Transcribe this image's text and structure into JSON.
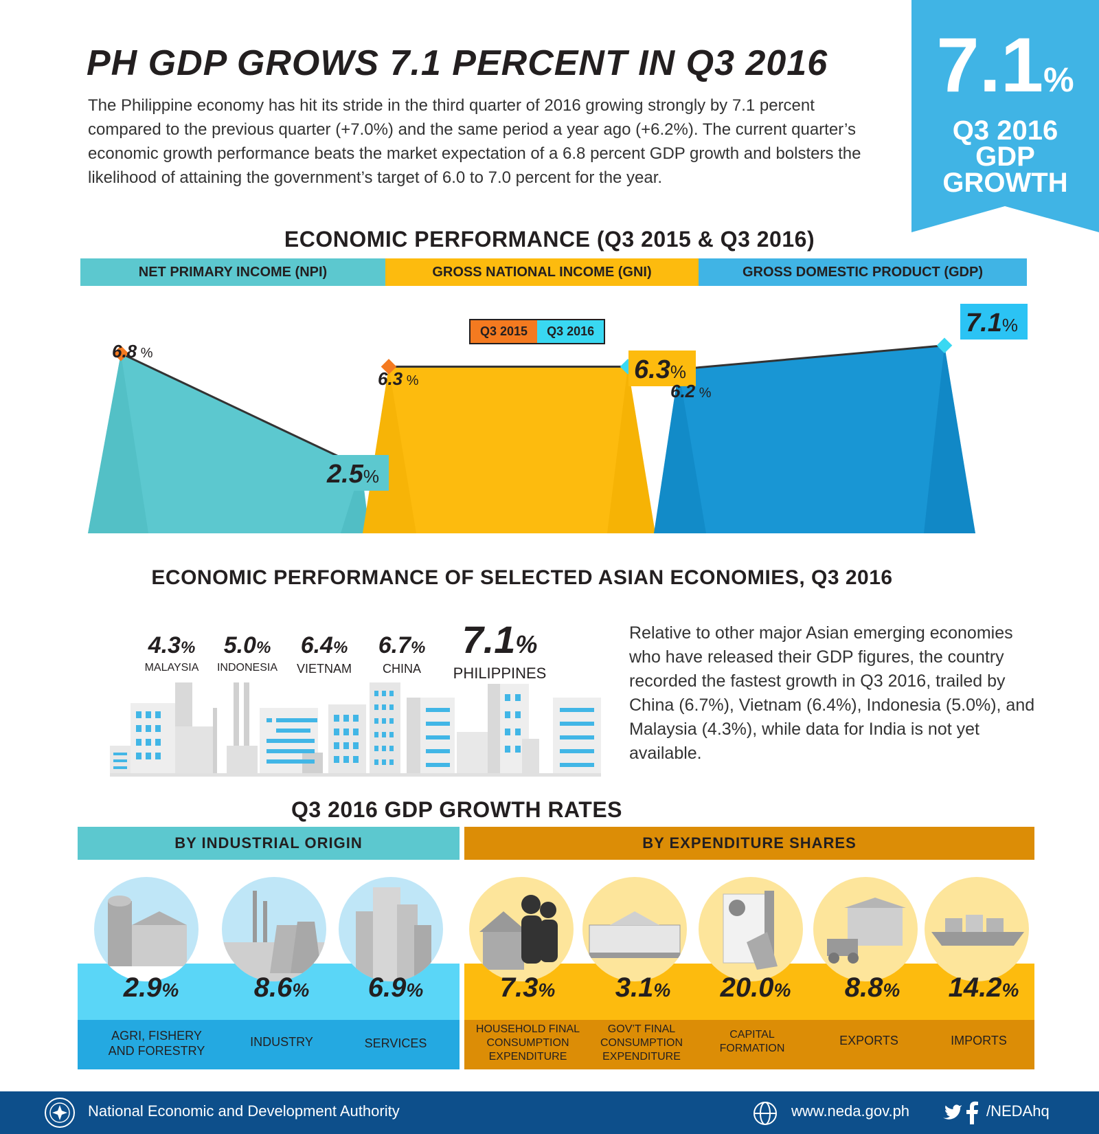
{
  "header": {
    "title": "PH GDP GROWS 7.1 PERCENT IN Q3 2016",
    "intro": "The Philippine economy has hit its stride in the third quarter of 2016 growing strongly by 7.1 percent compared to the previous quarter (+7.0%) and the same period a year ago (+6.2%). The current quarter’s economic growth performance beats the market expectation of a 6.8 percent GDP growth and bolsters the likelihood of attaining the government’s target of 6.0 to 7.0 percent for the year."
  },
  "ribbon": {
    "value": "7.1",
    "pct": "%",
    "line1": "Q3 2016",
    "line2": "GDP",
    "line3": "GROWTH"
  },
  "colors": {
    "teal": "#5cc8cf",
    "gold": "#fdbb0e",
    "blue": "#40b4e5",
    "orange": "#f47a20",
    "cyan": "#39d8f2",
    "darkblue": "#0f4e8c",
    "lightblue": "#5ad6f7",
    "amber": "#dc8d06"
  },
  "performance": {
    "title": "ECONOMIC PERFORMANCE (Q3 2015 & Q3 2016)",
    "bands": [
      "NET PRIMARY INCOME (NPI)",
      "GROSS NATIONAL INCOME (GNI)",
      "GROSS DOMESTIC PRODUCT (GDP)"
    ],
    "legend": [
      "Q3 2015",
      "Q3 2016"
    ]
  },
  "chart_data": [
    {
      "type": "line",
      "categories": [
        "NET PRIMARY INCOME (NPI)",
        "GROSS NATIONAL INCOME (GNI)",
        "GROSS DOMESTIC PRODUCT (GDP)"
      ],
      "series": [
        {
          "name": "Q3 2015",
          "values": [
            6.8,
            6.3,
            6.2
          ]
        },
        {
          "name": "Q3 2016",
          "values": [
            2.5,
            6.3,
            7.1
          ]
        }
      ],
      "labels_2015": [
        "6.8",
        "6.3",
        "6.2"
      ],
      "labels_2016": [
        "2.5",
        "6.3",
        "7.1"
      ],
      "ylim": [
        0,
        8
      ]
    }
  ],
  "asian": {
    "title": "ECONOMIC PERFORMANCE  OF SELECTED ASIAN ECONOMIES, Q3 2016",
    "countries": [
      {
        "value": "4.3",
        "name": "MALAYSIA"
      },
      {
        "value": "5.0",
        "name": "INDONESIA"
      },
      {
        "value": "6.4",
        "name": "VIETNAM"
      },
      {
        "value": "6.7",
        "name": "CHINA"
      },
      {
        "value": "7.1",
        "name": "PHILIPPINES"
      }
    ],
    "text": "Relative to other major Asian emerging economies who have released their GDP figures, the country recorded the fastest growth in Q3 2016, trailed by China (6.7%), Vietnam (6.4%), Indonesia (5.0%), and Malaysia (4.3%), while data for India is not yet available."
  },
  "rates": {
    "title": "Q3 2016 GDP GROWTH RATES",
    "industrial_band": "BY INDUSTRIAL ORIGIN",
    "expenditure_band": "BY EXPENDITURE SHARES",
    "industrial": [
      {
        "value": "2.9",
        "label": "AGRI, FISHERY AND FORESTRY",
        "icon": "farm-icon"
      },
      {
        "value": "8.6",
        "label": "INDUSTRY",
        "icon": "factory-icon"
      },
      {
        "value": "6.9",
        "label": "SERVICES",
        "icon": "office-buildings-icon"
      }
    ],
    "expenditure": [
      {
        "value": "7.3",
        "label": "HOUSEHOLD FINAL CONSUMPTION EXPENDITURE",
        "icon": "family-icon"
      },
      {
        "value": "3.1",
        "label": "GOV’T FINAL CONSUMPTION EXPENDITURE",
        "icon": "government-building-icon"
      },
      {
        "value": "20.0",
        "label": "CAPITAL FORMATION",
        "icon": "capital-icon"
      },
      {
        "value": "8.8",
        "label": "EXPORTS",
        "icon": "forklift-icon"
      },
      {
        "value": "14.2",
        "label": "IMPORTS",
        "icon": "cargo-ship-icon"
      }
    ]
  },
  "footer": {
    "org": "National Economic and Development Authority",
    "website": "www.neda.gov.ph",
    "social": "/NEDAhq"
  }
}
